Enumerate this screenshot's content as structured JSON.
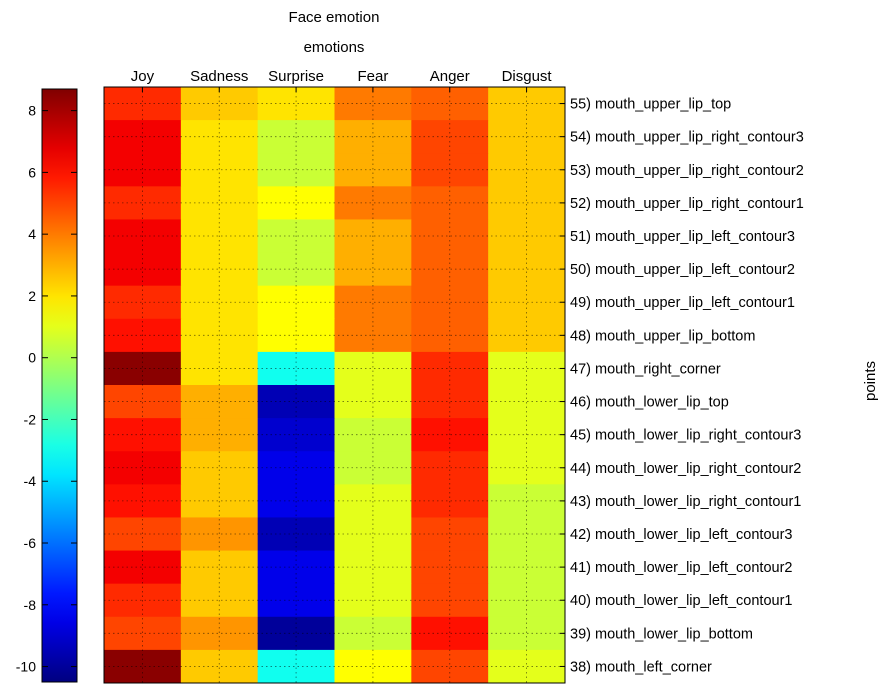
{
  "chart_data": {
    "type": "heatmap",
    "title": "Face emotion",
    "subtitle": "emotions",
    "ylabel": "points",
    "columns": [
      "Joy",
      "Sadness",
      "Surprise",
      "Fear",
      "Anger",
      "Disgust"
    ],
    "rows": [
      "55) mouth_upper_lip_top",
      "54) mouth_upper_lip_right_contour3",
      "53) mouth_upper_lip_right_contour2",
      "52) mouth_upper_lip_right_contour1",
      "51) mouth_upper_lip_left_contour3",
      "50) mouth_upper_lip_left_contour2",
      "49) mouth_upper_lip_left_contour1",
      "48) mouth_upper_lip_bottom",
      "47) mouth_right_corner",
      "46) mouth_lower_lip_top",
      "45) mouth_lower_lip_right_contour3",
      "44) mouth_lower_lip_right_contour2",
      "43) mouth_lower_lip_right_contour1",
      "42) mouth_lower_lip_left_contour3",
      "41) mouth_lower_lip_left_contour2",
      "40) mouth_lower_lip_left_contour1",
      "39) mouth_lower_lip_bottom",
      "38) mouth_left_corner"
    ],
    "values": [
      [
        5.5,
        2.5,
        2.0,
        4.0,
        4.5,
        2.5
      ],
      [
        6.5,
        2.0,
        0.5,
        3.0,
        5.0,
        2.5
      ],
      [
        6.5,
        2.0,
        0.5,
        3.0,
        5.0,
        2.5
      ],
      [
        5.5,
        2.0,
        1.5,
        4.0,
        4.5,
        2.5
      ],
      [
        6.5,
        2.0,
        0.5,
        3.0,
        4.5,
        2.5
      ],
      [
        6.5,
        2.0,
        0.5,
        3.0,
        4.5,
        2.5
      ],
      [
        5.5,
        2.0,
        1.5,
        4.0,
        4.5,
        2.5
      ],
      [
        6.0,
        2.0,
        1.5,
        4.0,
        4.5,
        2.5
      ],
      [
        8.5,
        2.0,
        -3.0,
        1.0,
        5.5,
        1.0
      ],
      [
        5.0,
        3.0,
        -9.5,
        1.0,
        5.5,
        1.0
      ],
      [
        6.0,
        3.0,
        -9.0,
        0.5,
        6.0,
        1.0
      ],
      [
        6.5,
        2.5,
        -8.5,
        0.5,
        5.5,
        1.0
      ],
      [
        6.0,
        2.5,
        -8.5,
        1.0,
        5.5,
        0.5
      ],
      [
        5.0,
        3.5,
        -9.5,
        1.0,
        5.0,
        0.5
      ],
      [
        6.5,
        2.5,
        -8.5,
        1.0,
        5.0,
        0.5
      ],
      [
        5.5,
        2.5,
        -8.5,
        1.0,
        5.0,
        0.5
      ],
      [
        5.0,
        3.5,
        -10.0,
        0.5,
        6.0,
        0.5
      ],
      [
        8.5,
        2.5,
        -3.0,
        1.5,
        5.0,
        1.0
      ]
    ],
    "colorbar": {
      "range": [
        -10.5,
        8.7
      ],
      "ticks": [
        "8",
        "6",
        "4",
        "2",
        "0",
        "-2",
        "-4",
        "-6",
        "-8",
        "-10"
      ],
      "colormap": "jet"
    },
    "grid": "on"
  }
}
